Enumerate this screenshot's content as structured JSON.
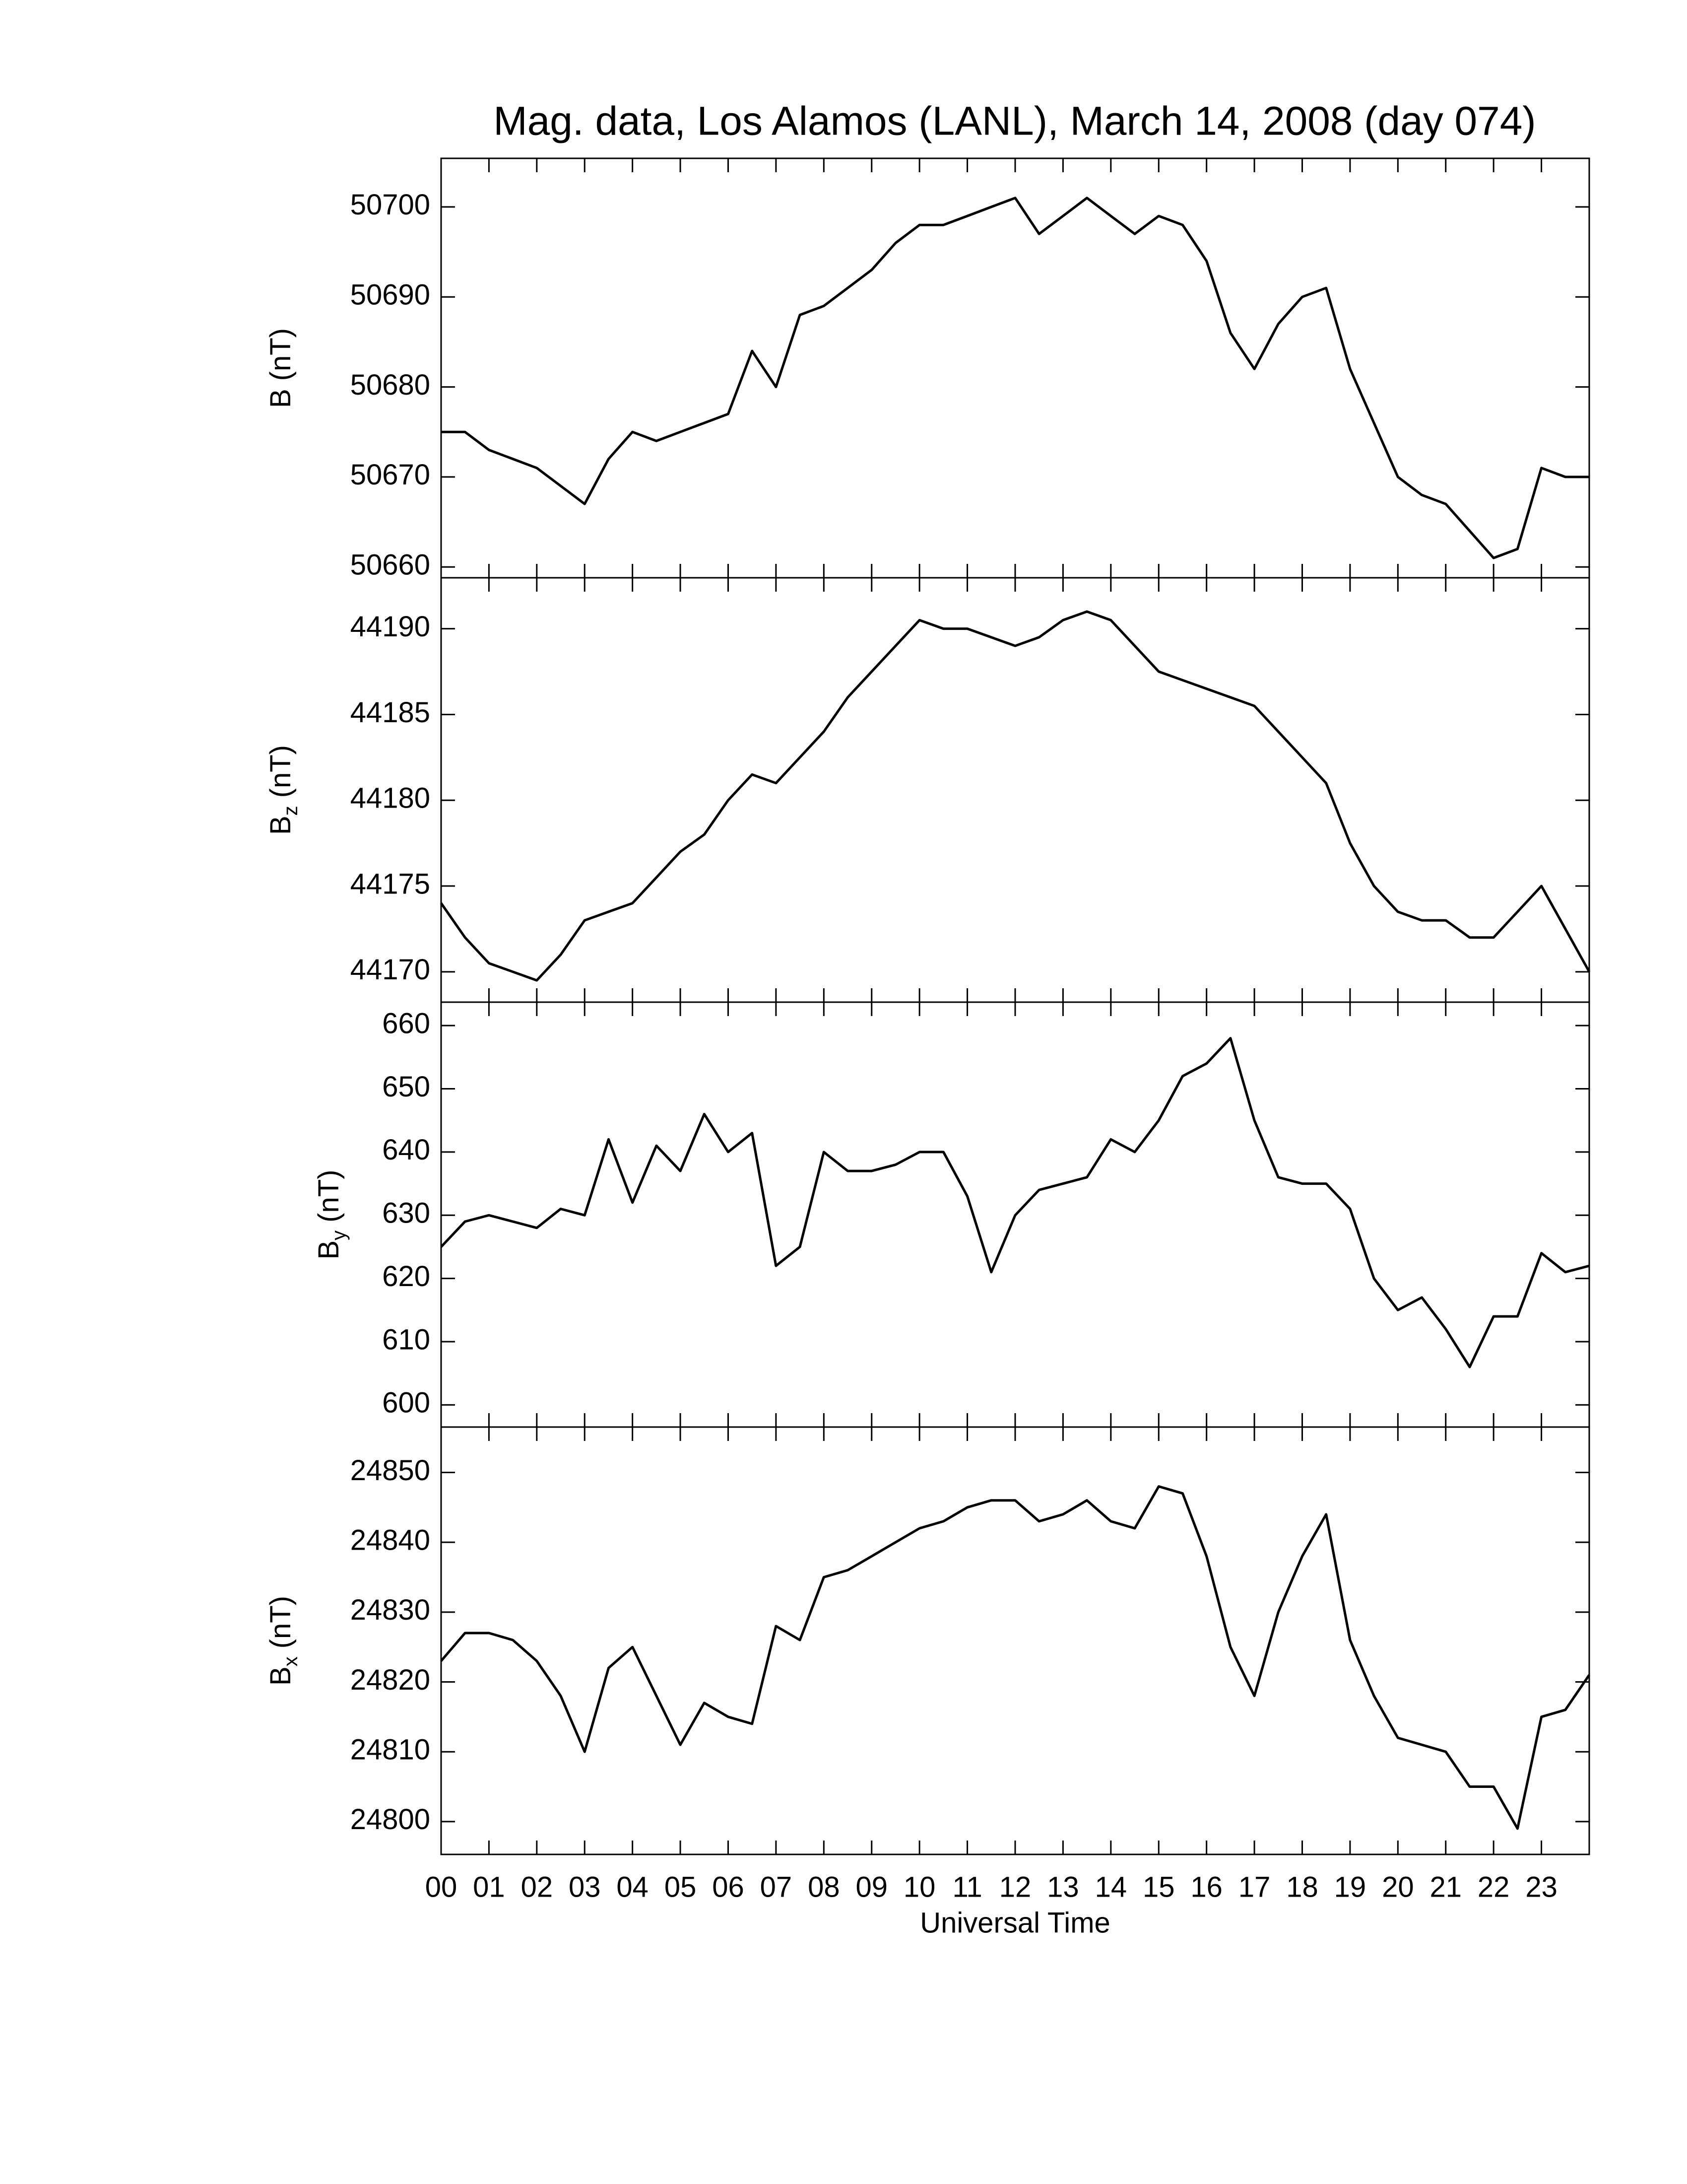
{
  "chart_data": [
    {
      "type": "line",
      "title": "Mag. data, Los Alamos (LANL), March 14, 2008 (day 074)",
      "ylabel": "B",
      "ylabel_unit": "(nT)",
      "color": "#000000",
      "x": [
        0,
        0.5,
        1,
        1.5,
        2,
        2.5,
        3,
        3.5,
        4,
        4.5,
        5,
        5.5,
        6,
        6.5,
        7,
        7.5,
        8,
        8.5,
        9,
        9.5,
        10,
        10.5,
        11,
        11.5,
        12,
        12.5,
        13,
        13.5,
        14,
        14.5,
        15,
        15.5,
        16,
        16.5,
        17,
        17.5,
        18,
        18.5,
        19,
        19.5,
        20,
        20.5,
        21,
        21.5,
        22,
        22.5,
        23,
        23.5,
        24
      ],
      "values": [
        50675,
        50675,
        50673,
        50672,
        50671,
        50669,
        50667,
        50672,
        50675,
        50674,
        50675,
        50676,
        50677,
        50684,
        50680,
        50688,
        50689,
        50691,
        50693,
        50696,
        50698,
        50698,
        50699,
        50700,
        50701,
        50697,
        50699,
        50701,
        50699,
        50697,
        50699,
        50698,
        50694,
        50686,
        50682,
        50687,
        50690,
        50691,
        50682,
        50676,
        50670,
        50668,
        50667,
        50664,
        50661,
        50662,
        50671,
        50670,
        50670
      ],
      "xlim": [
        0,
        24
      ],
      "xticks": [
        0,
        1,
        2,
        3,
        4,
        5,
        6,
        7,
        8,
        9,
        10,
        11,
        12,
        13,
        14,
        15,
        16,
        17,
        18,
        19,
        20,
        21,
        22,
        23
      ],
      "ylim": [
        50658.8,
        50705.4
      ],
      "yticks": [
        50660,
        50670,
        50680,
        50690,
        50700
      ]
    },
    {
      "type": "line",
      "ylabel": "B",
      "ylabel_sub": "z",
      "ylabel_unit": "(nT)",
      "color": "#000000",
      "x": [
        0,
        0.5,
        1,
        1.5,
        2,
        2.5,
        3,
        3.5,
        4,
        4.5,
        5,
        5.5,
        6,
        6.5,
        7,
        7.5,
        8,
        8.5,
        9,
        9.5,
        10,
        10.5,
        11,
        11.5,
        12,
        12.5,
        13,
        13.5,
        14,
        14.5,
        15,
        15.5,
        16,
        16.5,
        17,
        17.5,
        18,
        18.5,
        19,
        19.5,
        20,
        20.5,
        21,
        21.5,
        22,
        22.5,
        23,
        23.5,
        24
      ],
      "values": [
        44174,
        44172,
        44170.5,
        44170,
        44169.5,
        44171,
        44173,
        44173.5,
        44174,
        44175.5,
        44177,
        44178,
        44180,
        44181.5,
        44181,
        44182.5,
        44184,
        44186,
        44187.5,
        44189,
        44190.5,
        44190,
        44190,
        44189.5,
        44189,
        44189.5,
        44190.5,
        44191,
        44190.5,
        44189,
        44187.5,
        44187,
        44186.5,
        44186,
        44185.5,
        44184,
        44182.5,
        44181,
        44177.5,
        44175,
        44173.5,
        44173,
        44173,
        44172,
        44172,
        44173.5,
        44175,
        44172.5,
        44170
      ],
      "xlim": [
        0,
        24
      ],
      "xticks": [
        0,
        1,
        2,
        3,
        4,
        5,
        6,
        7,
        8,
        9,
        10,
        11,
        12,
        13,
        14,
        15,
        16,
        17,
        18,
        19,
        20,
        21,
        22,
        23
      ],
      "ylim": [
        44168.23,
        44192.97
      ],
      "yticks": [
        44170,
        44175,
        44180,
        44185,
        44190
      ]
    },
    {
      "type": "line",
      "ylabel": "B",
      "ylabel_sub": "y",
      "ylabel_unit": "(nT)",
      "color": "#000000",
      "x": [
        0,
        0.5,
        1,
        1.5,
        2,
        2.5,
        3,
        3.5,
        4,
        4.5,
        5,
        5.5,
        6,
        6.5,
        7,
        7.5,
        8,
        8.5,
        9,
        9.5,
        10,
        10.5,
        11,
        11.5,
        12,
        12.5,
        13,
        13.5,
        14,
        14.5,
        15,
        15.5,
        16,
        16.5,
        17,
        17.5,
        18,
        18.5,
        19,
        19.5,
        20,
        20.5,
        21,
        21.5,
        22,
        22.5,
        23,
        23.5,
        24
      ],
      "values": [
        625,
        629,
        630,
        629,
        628,
        631,
        630,
        642,
        632,
        641,
        637,
        646,
        640,
        643,
        622,
        625,
        640,
        637,
        637,
        638,
        640,
        640,
        633,
        621,
        630,
        634,
        635,
        636,
        642,
        640,
        645,
        652,
        654,
        658,
        645,
        636,
        635,
        635,
        631,
        620,
        615,
        617,
        612,
        606,
        614,
        614,
        624,
        621,
        622
      ],
      "xlim": [
        0,
        24
      ],
      "xticks": [
        0,
        1,
        2,
        3,
        4,
        5,
        6,
        7,
        8,
        9,
        10,
        11,
        12,
        13,
        14,
        15,
        16,
        17,
        18,
        19,
        20,
        21,
        22,
        23
      ],
      "ylim": [
        596.5,
        663.7
      ],
      "yticks": [
        600,
        610,
        620,
        630,
        640,
        650,
        660
      ]
    },
    {
      "type": "line",
      "ylabel": "B",
      "ylabel_sub": "x",
      "ylabel_unit": "(nT)",
      "xlabel": "Universal Time",
      "color": "#000000",
      "x": [
        0,
        0.5,
        1,
        1.5,
        2,
        2.5,
        3,
        3.5,
        4,
        4.5,
        5,
        5.5,
        6,
        6.5,
        7,
        7.5,
        8,
        8.5,
        9,
        9.5,
        10,
        10.5,
        11,
        11.5,
        12,
        12.5,
        13,
        13.5,
        14,
        14.5,
        15,
        15.5,
        16,
        16.5,
        17,
        17.5,
        18,
        18.5,
        19,
        19.5,
        20,
        20.5,
        21,
        21.5,
        22,
        22.5,
        23,
        23.5,
        24
      ],
      "values": [
        24823,
        24827,
        24827,
        24826,
        24823,
        24818,
        24810,
        24822,
        24825,
        24818,
        24811,
        24817,
        24815,
        24814,
        24828,
        24826,
        24835,
        24836,
        24838,
        24840,
        24842,
        24843,
        24845,
        24846,
        24846,
        24843,
        24844,
        24846,
        24843,
        24842,
        24848,
        24847,
        24838,
        24825,
        24818,
        24830,
        24838,
        24844,
        24826,
        24818,
        24812,
        24811,
        24810,
        24805,
        24805,
        24799,
        24815,
        24816,
        24821
      ],
      "xlim": [
        0,
        24
      ],
      "xticks": [
        {
          "value": 0,
          "label": "00"
        },
        {
          "value": 1,
          "label": "01"
        },
        {
          "value": 2,
          "label": "02"
        },
        {
          "value": 3,
          "label": "03"
        },
        {
          "value": 4,
          "label": "04"
        },
        {
          "value": 5,
          "label": "05"
        },
        {
          "value": 6,
          "label": "06"
        },
        {
          "value": 7,
          "label": "07"
        },
        {
          "value": 8,
          "label": "08"
        },
        {
          "value": 9,
          "label": "09"
        },
        {
          "value": 10,
          "label": "10"
        },
        {
          "value": 11,
          "label": "11"
        },
        {
          "value": 12,
          "label": "12"
        },
        {
          "value": 13,
          "label": "13"
        },
        {
          "value": 14,
          "label": "14"
        },
        {
          "value": 15,
          "label": "15"
        },
        {
          "value": 16,
          "label": "16"
        },
        {
          "value": 17,
          "label": "17"
        },
        {
          "value": 18,
          "label": "18"
        },
        {
          "value": 19,
          "label": "19"
        },
        {
          "value": 20,
          "label": "20"
        },
        {
          "value": 21,
          "label": "21"
        },
        {
          "value": 22,
          "label": "22"
        },
        {
          "value": 23,
          "label": "23"
        }
      ],
      "ylim": [
        24795.3,
        24856.5
      ],
      "yticks": [
        24800,
        24810,
        24820,
        24830,
        24840,
        24850
      ]
    }
  ]
}
